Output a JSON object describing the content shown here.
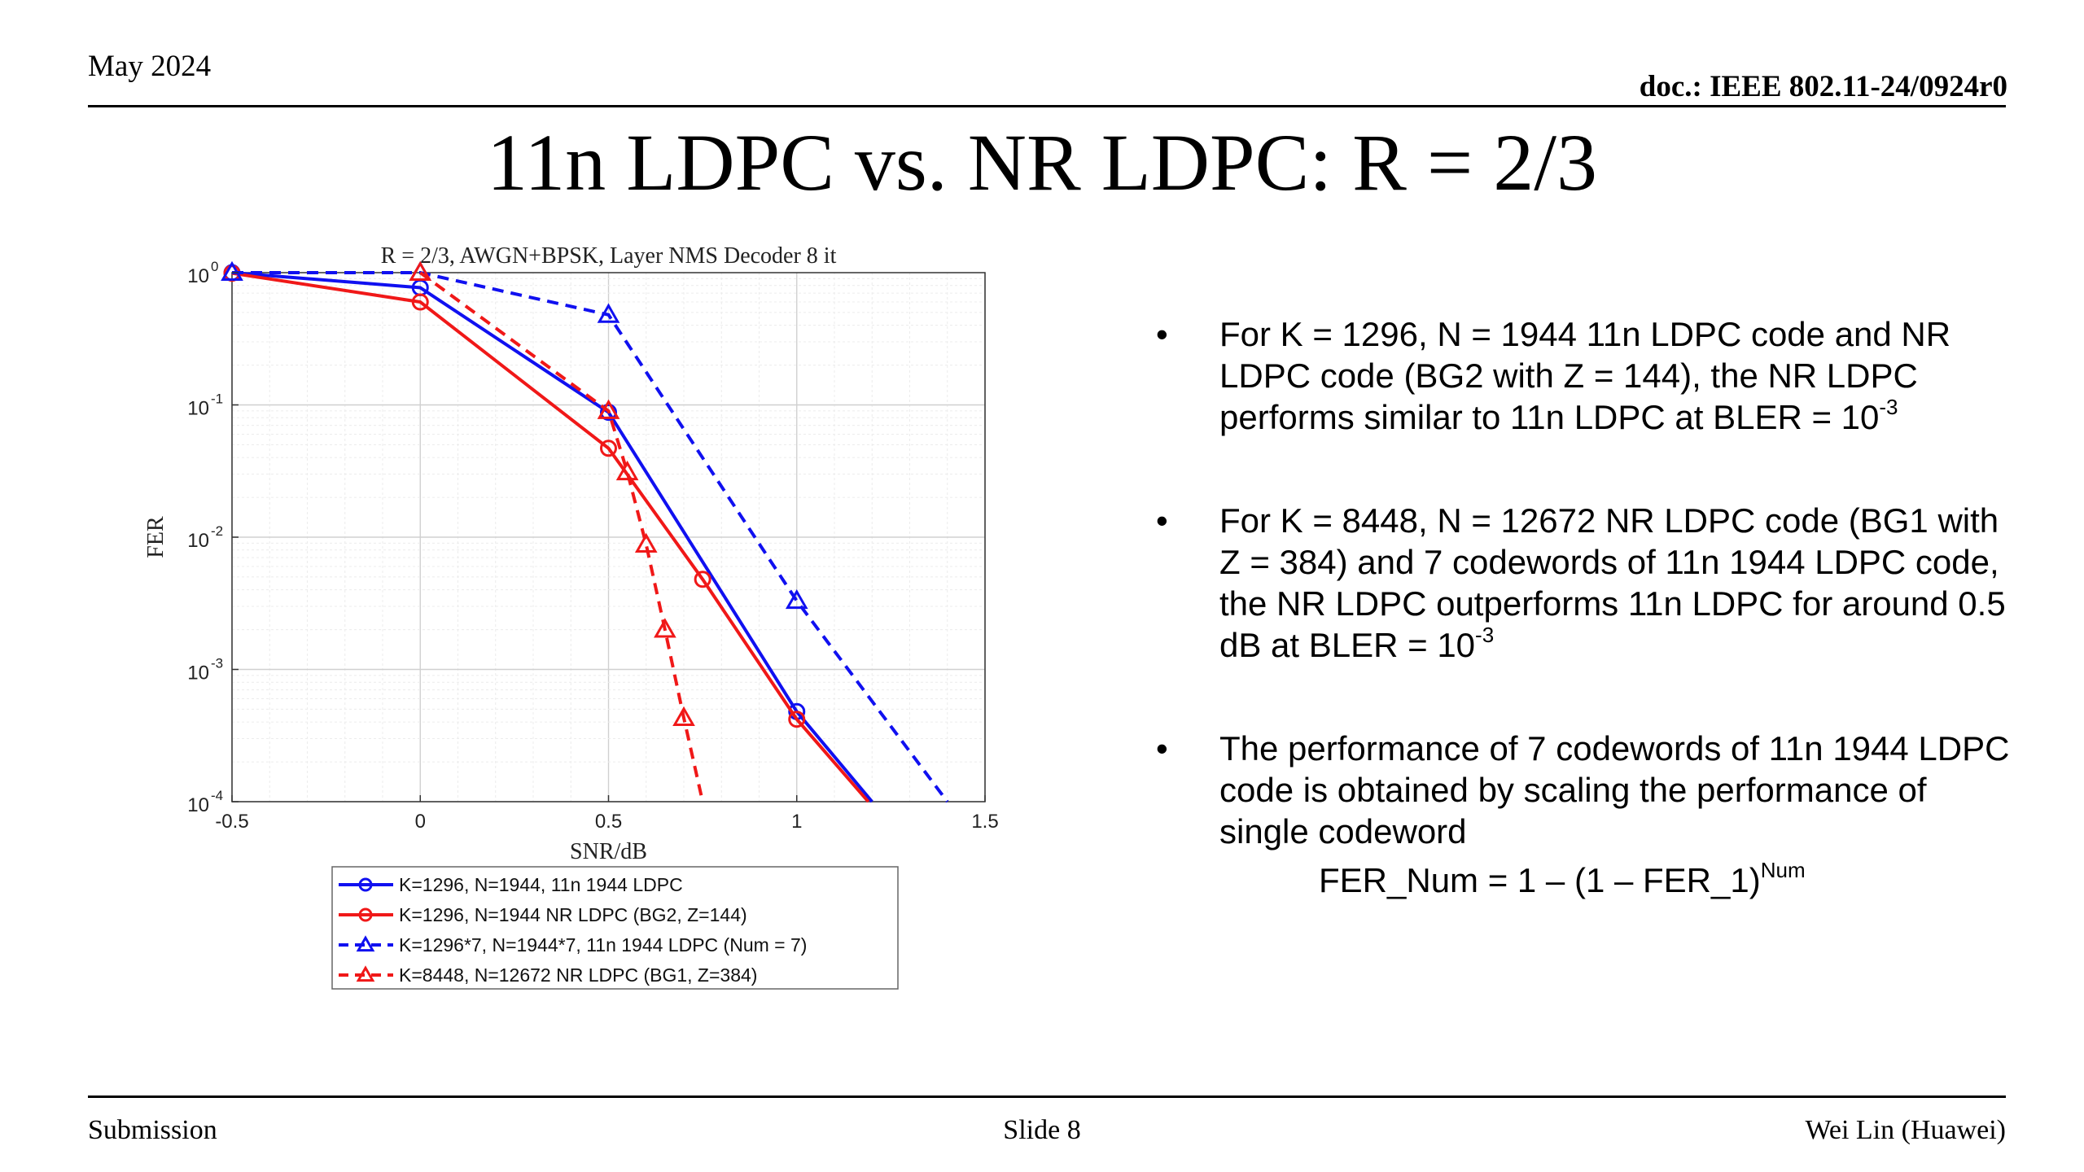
{
  "header": {
    "date": "May 2024",
    "doc_id": "doc.: IEEE 802.11-24/0924r0"
  },
  "slide": {
    "title": "11n LDPC vs. NR LDPC: R = 2/3"
  },
  "bullets": [
    {
      "text": "For K = 1296, N = 1944 11n LDPC code and NR LDPC code (BG2 with Z = 144), the NR LDPC performs similar to 11n LDPC at BLER = 10",
      "sup": "-3"
    },
    {
      "text": "For K = 8448, N = 12672 NR LDPC code (BG1 with Z = 384) and 7 codewords of 11n 1944 LDPC code, the NR LDPC outperforms 11n LDPC for around 0.5 dB at BLER = 10",
      "sup": "-3"
    },
    {
      "text": "The performance of 7 codewords of 11n 1944 LDPC code is obtained by scaling the performance of single codeword",
      "sup": ""
    }
  ],
  "bullet_marker": "•",
  "formula": {
    "text": "FER_Num = 1 – (1 – FER_1)",
    "sup": "Num"
  },
  "footer": {
    "left": "Submission",
    "center": "Slide 8",
    "right": "Wei Lin (Huawei)"
  },
  "colors": {
    "blue": "#1010f0",
    "red": "#f01818",
    "grid": "#d9d9d9"
  },
  "chart_data": {
    "type": "line",
    "title": "R = 2/3, AWGN+BPSK, Layer NMS Decoder 8 it",
    "xlabel": "SNR/dB",
    "ylabel": "FER",
    "xlim": [
      -0.5,
      1.5
    ],
    "ylim": [
      0.0001,
      1
    ],
    "yscale": "log",
    "grid": true,
    "xticks": [
      {
        "value": -0.5,
        "label": "-0.5"
      },
      {
        "value": 0,
        "label": "0"
      },
      {
        "value": 0.5,
        "label": "0.5"
      },
      {
        "value": 1,
        "label": "1"
      },
      {
        "value": 1.5,
        "label": "1.5"
      }
    ],
    "yticks": [
      {
        "exp": 0,
        "base": "10",
        "sup": "0"
      },
      {
        "exp": -1,
        "base": "10",
        "sup": "-1"
      },
      {
        "exp": -2,
        "base": "10",
        "sup": "-2"
      },
      {
        "exp": -3,
        "base": "10",
        "sup": "-3"
      },
      {
        "exp": -4,
        "base": "10",
        "sup": "-4"
      }
    ],
    "legend_position": "below",
    "series": [
      {
        "name": "K=1296, N=1944, 11n 1944 LDPC",
        "color": "blue",
        "dash": false,
        "marker": "circle",
        "x": [
          -0.5,
          0,
          0.5,
          1,
          1.2
        ],
        "y": [
          1.0,
          0.77,
          0.088,
          0.00048,
          0.0001
        ]
      },
      {
        "name": "K=1296, N=1944 NR LDPC (BG2, Z=144)",
        "color": "red",
        "dash": false,
        "marker": "circle",
        "x": [
          -0.5,
          0,
          0.5,
          0.75,
          1,
          1.19
        ],
        "y": [
          0.99,
          0.6,
          0.047,
          0.0048,
          0.00042,
          0.0001
        ]
      },
      {
        "name": "K=1296*7, N=1944*7, 11n 1944 LDPC (Num = 7)",
        "color": "blue",
        "dash": true,
        "marker": "triangle",
        "x": [
          -0.5,
          0,
          0.5,
          1,
          1.4
        ],
        "y": [
          1.0,
          1.0,
          0.48,
          0.0033,
          0.0001
        ]
      },
      {
        "name": "K=8448, N=12672 NR LDPC (BG1, Z=384)",
        "color": "red",
        "dash": true,
        "marker": "triangle",
        "x": [
          0,
          0.5,
          0.55,
          0.6,
          0.65,
          0.7,
          0.75
        ],
        "y": [
          1.0,
          0.09,
          0.031,
          0.0088,
          0.002,
          0.00043,
          0.0001
        ]
      }
    ]
  }
}
